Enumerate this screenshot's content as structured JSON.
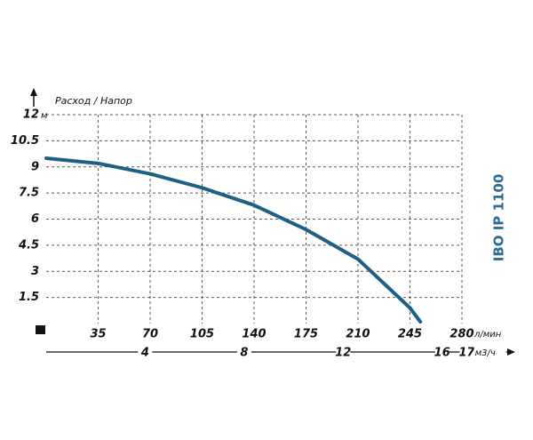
{
  "chart_data": {
    "type": "line",
    "title": "Расход / Напор",
    "model": "IBO IP 1100",
    "x_unit": "л/мин",
    "x2_unit": "м3/ч",
    "y_unit": "м",
    "x": [
      0,
      35,
      70,
      105,
      140,
      175,
      210,
      245,
      252
    ],
    "series": [
      {
        "name": null,
        "color": "#1f5f85",
        "values": [
          9.5,
          9.2,
          8.6,
          7.8,
          6.8,
          5.4,
          3.7,
          0.9,
          0.1
        ]
      }
    ],
    "xlim": [
      0,
      280
    ],
    "xticks": [
      35,
      70,
      105,
      140,
      175,
      210,
      245,
      280
    ],
    "x2lim": [
      0,
      16.8
    ],
    "x2ticks": [
      4,
      8,
      12,
      16,
      17
    ],
    "ylim": [
      0,
      12
    ],
    "yticks": [
      1.5,
      3,
      4.5,
      6,
      7.5,
      9,
      10.5,
      12
    ],
    "grid": true
  }
}
